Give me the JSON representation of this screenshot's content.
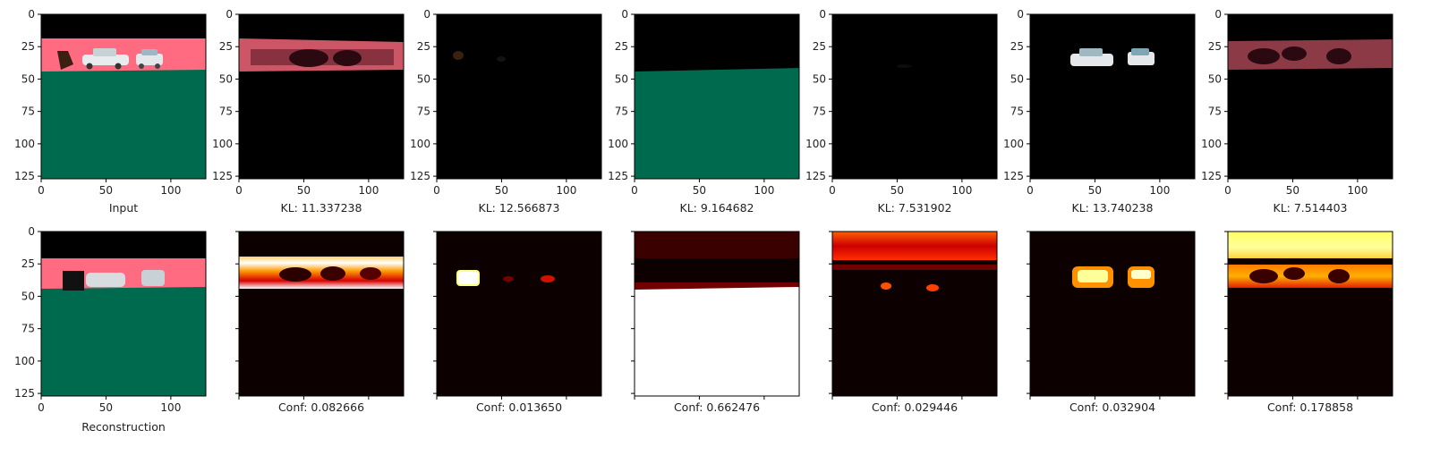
{
  "colors": {
    "sky": "#ff6b80",
    "ground": "#006a4e",
    "black": "#000000",
    "heat_dark": "#0c0000",
    "heat_white": "#ffffff",
    "car_white": "#e4e8ea",
    "car_blue": "#7fa6b5"
  },
  "chart_data": {
    "type": "image-grid",
    "colormap": "hot",
    "axes": {
      "xticks": [
        "0",
        "50",
        "100"
      ],
      "yticks": [
        "0",
        "25",
        "50",
        "75",
        "100",
        "125"
      ],
      "xlim": [
        0,
        127
      ],
      "ylim": [
        127,
        0
      ]
    },
    "top_row": [
      {
        "caption": "Input",
        "type": "segmentation-image"
      },
      {
        "caption": "KL: 11.337238",
        "type": "component-image"
      },
      {
        "caption": "KL: 12.566873",
        "type": "component-image"
      },
      {
        "caption": "KL: 9.164682",
        "type": "component-image"
      },
      {
        "caption": "KL: 7.531902",
        "type": "component-image"
      },
      {
        "caption": "KL: 13.740238",
        "type": "component-image"
      },
      {
        "caption": "KL: 7.514403",
        "type": "component-image"
      }
    ],
    "bottom_row": [
      {
        "caption": "Reconstruction",
        "type": "reconstruction-image"
      },
      {
        "caption": "Conf: 0.082666",
        "type": "heatmap"
      },
      {
        "caption": "Conf: 0.013650",
        "type": "heatmap"
      },
      {
        "caption": "Conf: 0.662476",
        "type": "heatmap"
      },
      {
        "caption": "Conf: 0.029446",
        "type": "heatmap"
      },
      {
        "caption": "Conf: 0.032904",
        "type": "heatmap"
      },
      {
        "caption": "Conf: 0.178858",
        "type": "heatmap"
      }
    ]
  }
}
